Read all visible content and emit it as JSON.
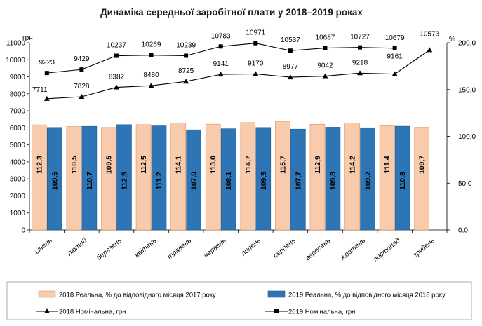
{
  "chart_data": {
    "type": "bar+line",
    "title": "Динаміка середньої заробітної плати у 2018–2019 роках",
    "left_axis": {
      "unit": "грн",
      "range": [
        0,
        11000
      ],
      "ticks": [
        "0",
        "1000",
        "2000",
        "3000",
        "4000",
        "5000",
        "6000",
        "7000",
        "8000",
        "9000",
        "10000",
        "11000"
      ]
    },
    "right_axis": {
      "unit": "%",
      "range": [
        0,
        200
      ],
      "ticks": [
        "0,0",
        "50,0",
        "100,0",
        "150,0",
        "200,0"
      ]
    },
    "categories": [
      "січень",
      "лютий",
      "березень",
      "квітень",
      "травень",
      "червень",
      "липень",
      "серпень",
      "вересень",
      "жовтень",
      "листопад",
      "грудень"
    ],
    "series": [
      {
        "name": "2018 Реальна, % до відповідного місяця 2017 року",
        "kind": "bar",
        "axis": "right",
        "color": "#F8CBAD",
        "edge": "#E0915A",
        "values": [
          112.3,
          110.5,
          109.5,
          112.5,
          114.1,
          113.0,
          114.7,
          115.7,
          112.9,
          114.2,
          111.4,
          109.7
        ],
        "labels": [
          "112,3",
          "110,5",
          "109,5",
          "112,5",
          "114,1",
          "113,0",
          "114,7",
          "115,7",
          "112,9",
          "114,2",
          "111,4",
          "109,7"
        ]
      },
      {
        "name": "2019 Реальна, % до відповідного місяця 2018 року",
        "kind": "bar",
        "axis": "right",
        "color": "#2E75B6",
        "edge": "#1F5A8F",
        "values": [
          109.5,
          110.7,
          112.5,
          111.2,
          107.0,
          108.1,
          109.5,
          107.7,
          109.8,
          109.2,
          110.8,
          null
        ],
        "labels": [
          "109,5",
          "110,7",
          "112,5",
          "111,2",
          "107,0",
          "108,1",
          "109,5",
          "107,7",
          "109,8",
          "109,2",
          "110,8",
          null
        ]
      },
      {
        "name": "2018 Номінальна, грн",
        "kind": "line",
        "marker": "triangle",
        "axis": "left",
        "color": "#000000",
        "values": [
          7711,
          7828,
          8382,
          8480,
          8725,
          9141,
          9170,
          8977,
          9042,
          9218,
          9161,
          10573
        ]
      },
      {
        "name": "2019 Номінальна, грн",
        "kind": "line",
        "marker": "square",
        "axis": "left",
        "color": "#000000",
        "values": [
          9223,
          9429,
          10237,
          10269,
          10239,
          10783,
          10971,
          10537,
          10687,
          10727,
          10679,
          null
        ]
      }
    ],
    "grid": false,
    "legend": "bottom"
  }
}
